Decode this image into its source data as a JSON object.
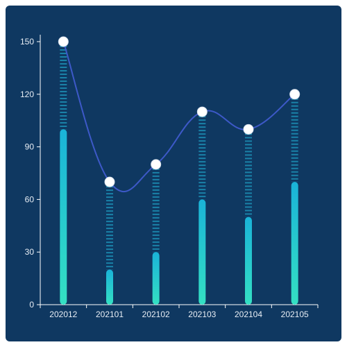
{
  "chart_data": {
    "type": "bar",
    "categories": [
      "202012",
      "202101",
      "202102",
      "202103",
      "202104",
      "202105"
    ],
    "series": [
      {
        "type": "bar",
        "values": [
          100,
          20,
          30,
          60,
          50,
          70
        ]
      },
      {
        "type": "line",
        "values": [
          150,
          70,
          80,
          110,
          100,
          120
        ]
      }
    ],
    "ylim": [
      0,
      150
    ],
    "yticks": [
      0,
      30,
      60,
      90,
      120,
      150
    ],
    "grid": false,
    "legend": "none",
    "colors": {
      "background": "#0f3861",
      "bar_top": "#1ab3d8",
      "bar_bottom": "#34e0c3",
      "line": "#3d59c8",
      "point": "#ffffff",
      "axis": "#ffffff",
      "dash": "#1d8fb5"
    }
  }
}
